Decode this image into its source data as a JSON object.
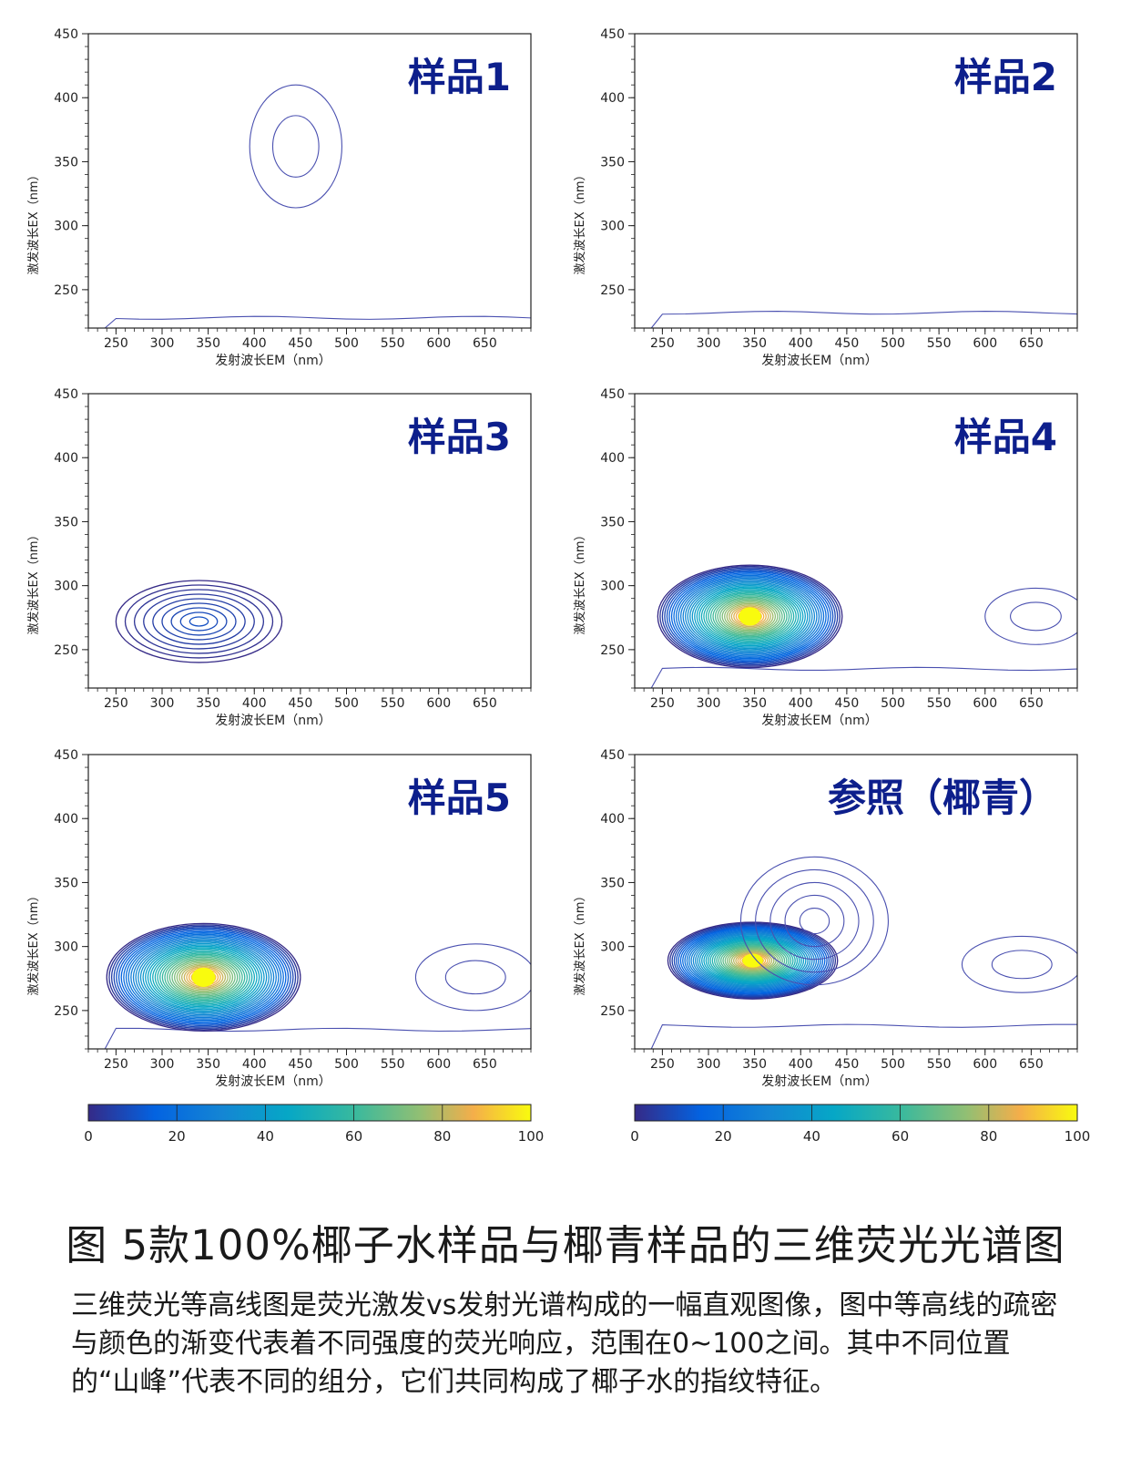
{
  "figure": {
    "caption_title": "图  5款100%椰子水样品与椰青样品的三维荧光光谱图",
    "caption_text": "三维荧光等高线图是荧光激发vs发射光谱构成的一幅直观图像，图中等高线的疏密与颜色的渐变代表着不同强度的荧光响应，范围在0~100之间。其中不同位置的“山峰”代表不同的组分，它们共同构成了椰子水的指纹特征。",
    "title_color": "#0d1f8c",
    "line_color": "#4a50b0"
  },
  "chart_data": [
    {
      "type": "contour",
      "title": "样品1",
      "xlabel": "发射波长EM（nm）",
      "ylabel": "激发波长EX（nm）",
      "xlim": [
        220,
        700
      ],
      "ylim": [
        220,
        450
      ],
      "xticks": [
        250,
        300,
        350,
        400,
        450,
        500,
        550,
        600,
        650
      ],
      "yticks": [
        250,
        300,
        350,
        400,
        450
      ],
      "peaks": [
        {
          "em": 445,
          "ex": 362,
          "rx": 50,
          "ry": 48,
          "levels": 2,
          "max_intensity": 5
        }
      ],
      "baseline_ex": 228
    },
    {
      "type": "contour",
      "title": "样品2",
      "xlabel": "发射波长EM（nm）",
      "ylabel": "激发波长EX（nm）",
      "xlim": [
        220,
        700
      ],
      "ylim": [
        220,
        450
      ],
      "xticks": [
        250,
        300,
        350,
        400,
        450,
        500,
        550,
        600,
        650
      ],
      "yticks": [
        250,
        300,
        350,
        400,
        450
      ],
      "peaks": [],
      "baseline_ex": 232
    },
    {
      "type": "contour",
      "title": "样品3",
      "xlabel": "发射波长EM（nm）",
      "ylabel": "激发波长EX（nm）",
      "xlim": [
        220,
        700
      ],
      "ylim": [
        220,
        450
      ],
      "xticks": [
        250,
        300,
        350,
        400,
        450,
        500,
        550,
        600,
        650
      ],
      "yticks": [
        250,
        300,
        350,
        400,
        450
      ],
      "peaks": [
        {
          "em": 340,
          "ex": 272,
          "rx": 90,
          "ry": 32,
          "levels": 9,
          "max_intensity": 10
        }
      ],
      "baseline_ex": null
    },
    {
      "type": "contour",
      "title": "样品4",
      "xlabel": "发射波长EM（nm）",
      "ylabel": "激发波长EX（nm）",
      "xlim": [
        220,
        700
      ],
      "ylim": [
        220,
        450
      ],
      "xticks": [
        250,
        300,
        350,
        400,
        450,
        500,
        550,
        600,
        650
      ],
      "yticks": [
        250,
        300,
        350,
        400,
        450
      ],
      "peaks": [
        {
          "em": 345,
          "ex": 276,
          "rx": 100,
          "ry": 40,
          "levels": 40,
          "max_intensity": 100
        },
        {
          "em": 655,
          "ex": 276,
          "rx": 55,
          "ry": 22,
          "levels": 2,
          "max_intensity": 5
        }
      ],
      "baseline_ex": 235
    },
    {
      "type": "contour",
      "title": "样品5",
      "xlabel": "发射波长EM（nm）",
      "ylabel": "激发波长EX（nm）",
      "xlim": [
        220,
        700
      ],
      "ylim": [
        220,
        450
      ],
      "xticks": [
        250,
        300,
        350,
        400,
        450,
        500,
        550,
        600,
        650
      ],
      "yticks": [
        250,
        300,
        350,
        400,
        450
      ],
      "peaks": [
        {
          "em": 345,
          "ex": 276,
          "rx": 105,
          "ry": 42,
          "levels": 40,
          "max_intensity": 100
        },
        {
          "em": 640,
          "ex": 276,
          "rx": 65,
          "ry": 26,
          "levels": 2,
          "max_intensity": 5
        }
      ],
      "baseline_ex": 235
    },
    {
      "type": "contour",
      "title": "参照（椰青）",
      "xlabel": "发射波长EM（nm）",
      "ylabel": "激发波长EX（nm）",
      "xlim": [
        220,
        700
      ],
      "ylim": [
        220,
        450
      ],
      "xticks": [
        250,
        300,
        350,
        400,
        450,
        500,
        550,
        600,
        650
      ],
      "yticks": [
        250,
        300,
        350,
        400,
        450
      ],
      "peaks": [
        {
          "em": 348,
          "ex": 289,
          "rx": 92,
          "ry": 30,
          "levels": 40,
          "max_intensity": 100
        },
        {
          "em": 415,
          "ex": 320,
          "rx": 80,
          "ry": 50,
          "levels": 5,
          "max_intensity": 15
        },
        {
          "em": 640,
          "ex": 286,
          "rx": 65,
          "ry": 22,
          "levels": 2,
          "max_intensity": 5
        }
      ],
      "baseline_ex": 238
    }
  ],
  "colorbars": [
    {
      "ticks": [
        "0",
        "20",
        "40",
        "60",
        "80",
        "100"
      ]
    },
    {
      "ticks": [
        "0",
        "20",
        "40",
        "60",
        "80",
        "100"
      ]
    }
  ]
}
